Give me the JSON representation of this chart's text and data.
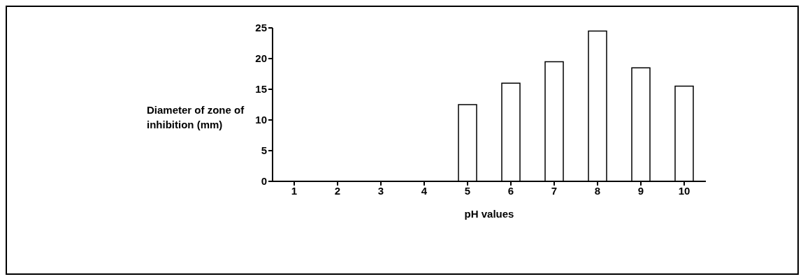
{
  "chart_data": {
    "type": "bar",
    "xlabel": "pH values",
    "ylabel": "Diameter of zone of inhibition (mm)",
    "categories": [
      "1",
      "2",
      "3",
      "4",
      "5",
      "6",
      "7",
      "8",
      "9",
      "10"
    ],
    "values": [
      0,
      0,
      0,
      0,
      12.5,
      16,
      19.5,
      24.5,
      18.5,
      15.5
    ],
    "color": "#ffffff",
    "ylim": [
      0,
      25
    ],
    "yticks": [
      0,
      5,
      10,
      15,
      20,
      25
    ],
    "grid": false,
    "legend": false
  }
}
